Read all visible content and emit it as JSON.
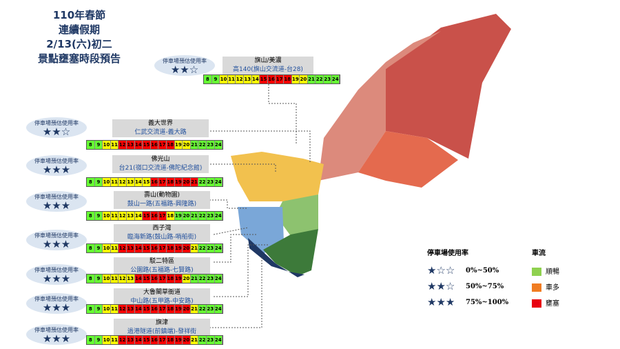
{
  "title_lines": [
    "110年春節",
    "連續假期",
    "2/13(六)初二",
    "景點壅塞時段預告"
  ],
  "parking_label": "停車場預估使用率",
  "hours": [
    8,
    9,
    10,
    11,
    12,
    13,
    14,
    15,
    16,
    17,
    18,
    19,
    20,
    21,
    22,
    23,
    24
  ],
  "spots": [
    {
      "name": "旗山/美濃",
      "route": "高140(旗山交流道-台28)",
      "rating": "★★☆",
      "levels": [
        0,
        0,
        1,
        1,
        1,
        1,
        1,
        2,
        2,
        2,
        2,
        1,
        1,
        0,
        0,
        0,
        0
      ]
    },
    {
      "name": "義大世界",
      "route": "仁武交流道-義大路",
      "rating": "★★☆",
      "levels": [
        0,
        0,
        1,
        1,
        2,
        2,
        2,
        2,
        2,
        2,
        2,
        1,
        1,
        0,
        0,
        0,
        0
      ]
    },
    {
      "name": "佛光山",
      "route": "台21(嶺口交流道-佛陀紀念館)",
      "rating": "★★★",
      "levels": [
        0,
        0,
        1,
        1,
        1,
        1,
        1,
        1,
        2,
        2,
        2,
        2,
        2,
        2,
        0,
        0,
        0
      ]
    },
    {
      "name": "壽山(動物園)",
      "route": "鼓山一路(五福路-興隆路)",
      "rating": "★★★",
      "levels": [
        0,
        0,
        1,
        1,
        1,
        1,
        1,
        2,
        2,
        2,
        1,
        0,
        0,
        0,
        0,
        0,
        0
      ]
    },
    {
      "name": "西子灣",
      "route": "臨海新路(鼓山路-哨船街)",
      "rating": "★★★",
      "levels": [
        0,
        0,
        1,
        1,
        2,
        2,
        2,
        2,
        2,
        2,
        2,
        2,
        2,
        1,
        0,
        0,
        0
      ]
    },
    {
      "name": "駁二特區",
      "route": "公園路(五福路-七賢路)",
      "rating": "★★★",
      "levels": [
        0,
        0,
        1,
        1,
        1,
        1,
        2,
        2,
        2,
        2,
        2,
        2,
        1,
        0,
        0,
        0,
        0
      ]
    },
    {
      "name": "大魯閣草衙道",
      "route": "中山路(五甲路-中安路)",
      "rating": "★★★",
      "levels": [
        0,
        0,
        1,
        1,
        2,
        2,
        2,
        2,
        2,
        2,
        2,
        2,
        2,
        1,
        0,
        0,
        0
      ]
    },
    {
      "name": "旗津",
      "route": "過港隧道(前鎮端)-發祥街",
      "rating": "★★★",
      "levels": [
        0,
        0,
        1,
        1,
        2,
        2,
        2,
        2,
        2,
        2,
        2,
        2,
        2,
        1,
        0,
        0,
        0
      ]
    }
  ],
  "legend": {
    "parking_title": "停車場使用率",
    "parking": [
      {
        "stars": "★☆☆",
        "label": "0%~50%"
      },
      {
        "stars": "★★☆",
        "label": "50%~75%"
      },
      {
        "stars": "★★★",
        "label": "75%~100%"
      }
    ],
    "traffic_title": "車流",
    "traffic": [
      {
        "label": "順暢",
        "color": "#8fd14f",
        "cell_color": "#66ff33"
      },
      {
        "label": "車多",
        "color": "#f07c22",
        "cell_color": "#ffff00"
      },
      {
        "label": "壅塞",
        "color": "#e8000f",
        "cell_color": "#ff0000"
      }
    ]
  }
}
